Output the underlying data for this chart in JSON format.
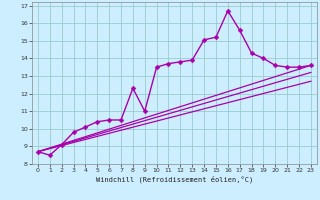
{
  "xlabel": "Windchill (Refroidissement éolien,°C)",
  "background_color": "#cceeff",
  "line_color": "#aa00aa",
  "grid_color": "#99cccc",
  "xlim": [
    -0.5,
    23.5
  ],
  "ylim": [
    8,
    17.2
  ],
  "xticks": [
    0,
    1,
    2,
    3,
    4,
    5,
    6,
    7,
    8,
    9,
    10,
    11,
    12,
    13,
    14,
    15,
    16,
    17,
    18,
    19,
    20,
    21,
    22,
    23
  ],
  "yticks": [
    8,
    9,
    10,
    11,
    12,
    13,
    14,
    15,
    16,
    17
  ],
  "series": [
    {
      "x": [
        0,
        1,
        2,
        3,
        4,
        5,
        6,
        7,
        8,
        9,
        10,
        11,
        12,
        13,
        14,
        15,
        16,
        17,
        18,
        19,
        20,
        21,
        22,
        23
      ],
      "y": [
        8.7,
        8.5,
        9.1,
        9.8,
        10.1,
        10.4,
        10.5,
        10.5,
        12.3,
        11.0,
        13.5,
        13.7,
        13.8,
        13.9,
        15.05,
        15.2,
        16.7,
        15.6,
        14.3,
        14.0,
        13.6,
        13.5,
        13.5,
        13.6
      ],
      "marker": "D",
      "markersize": 2.5,
      "linewidth": 1.0
    },
    {
      "x": [
        0,
        23
      ],
      "y": [
        8.7,
        13.6
      ],
      "marker": null,
      "linewidth": 0.9
    },
    {
      "x": [
        0,
        23
      ],
      "y": [
        8.7,
        13.2
      ],
      "marker": null,
      "linewidth": 0.9
    },
    {
      "x": [
        0,
        23
      ],
      "y": [
        8.7,
        12.7
      ],
      "marker": null,
      "linewidth": 0.9
    }
  ]
}
